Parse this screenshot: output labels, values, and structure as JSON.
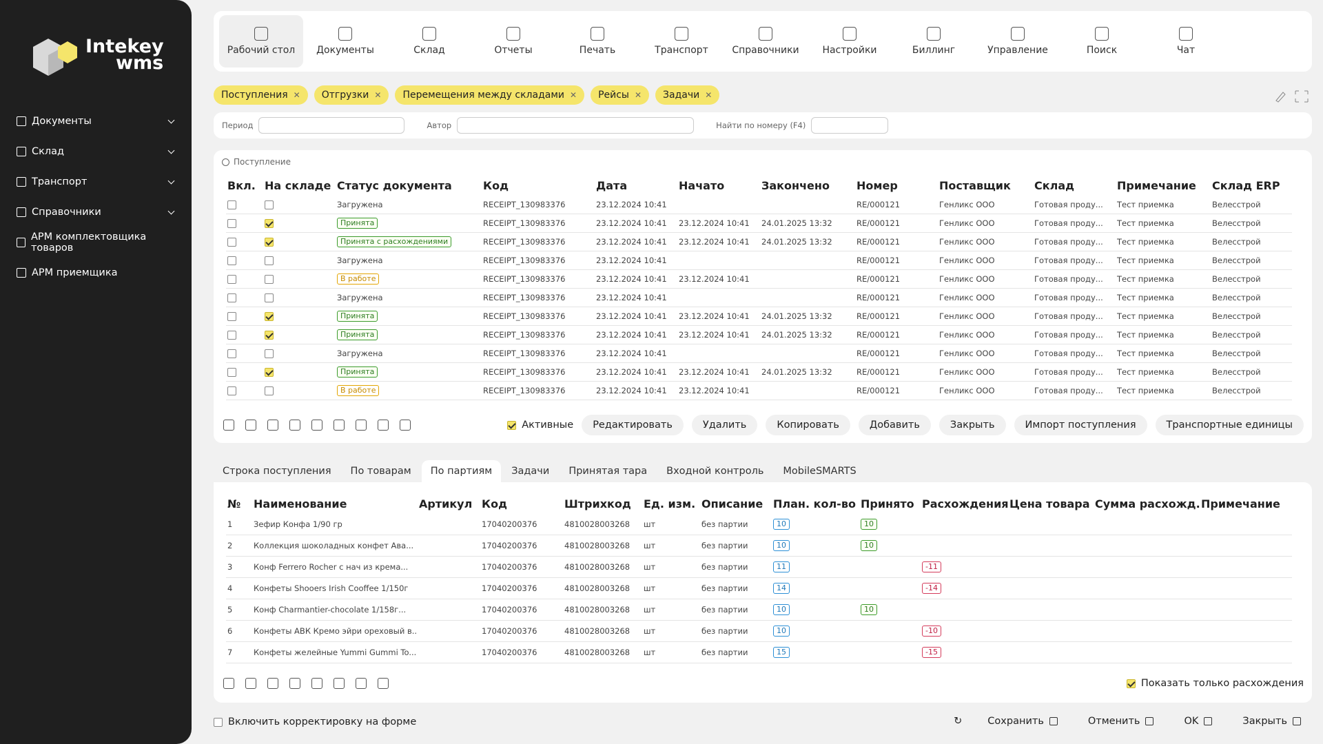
{
  "logo": {
    "name": "Intekey",
    "product": "wms"
  },
  "sidebar": [
    {
      "label": "Документы",
      "expandable": true
    },
    {
      "label": "Склад",
      "expandable": true
    },
    {
      "label": "Транспорт",
      "expandable": true
    },
    {
      "label": "Справочники",
      "expandable": true
    },
    {
      "label": "АРМ комплектовщика товаров",
      "expandable": false
    },
    {
      "label": "АРМ приемщика",
      "expandable": false
    }
  ],
  "top_nav": [
    {
      "label": "Рабочий стол",
      "active": true
    },
    {
      "label": "Документы",
      "active": false
    },
    {
      "label": "Склад",
      "active": false
    },
    {
      "label": "Отчеты",
      "active": false
    },
    {
      "label": "Печать",
      "active": false
    },
    {
      "label": "Транспорт",
      "active": false
    },
    {
      "label": "Справочники",
      "active": false
    },
    {
      "label": "Настройки",
      "active": false
    },
    {
      "label": "Биллинг",
      "active": false
    },
    {
      "label": "Управление",
      "active": false
    },
    {
      "label": "Поиск",
      "active": false
    },
    {
      "label": "Чат",
      "active": false
    }
  ],
  "filter_chips": [
    "Поступления",
    "Отгрузки",
    "Перемещения между складами",
    "Рейсы",
    "Задачи"
  ],
  "filters": [
    "Период",
    "Автор",
    "Найти по номеру (F4)"
  ],
  "receipts": {
    "section": "Поступление",
    "columns": [
      "Вкл.",
      "На складе",
      "Статус документа",
      "Код",
      "Дата",
      "Начато",
      "Закончено",
      "Номер",
      "Поставщик",
      "Склад",
      "Примечание",
      "Склад ERP"
    ],
    "rows": [
      [
        false,
        false,
        "Загружена",
        "RECEIPT_130983376",
        "23.12.2024 10:41",
        null,
        null,
        "RE/000121",
        "Генликс ООО",
        "Готовая проду...",
        "Тест приемка",
        "Велесстрой"
      ],
      [
        false,
        true,
        "Принята",
        "RECEIPT_130983376",
        "23.12.2024 10:41",
        "23.12.2024 10:41",
        "24.01.2025 13:32",
        "RE/000121",
        "Генликс ООО",
        "Готовая проду...",
        "Тест приемка",
        "Велесстрой"
      ],
      [
        false,
        true,
        "Принята с расхождениями",
        "RECEIPT_130983376",
        "23.12.2024 10:41",
        "23.12.2024 10:41",
        "24.01.2025 13:32",
        "RE/000121",
        "Генликс ООО",
        "Готовая проду...",
        "Тест приемка",
        "Велесстрой"
      ],
      [
        false,
        false,
        "Загружена",
        "RECEIPT_130983376",
        "23.12.2024 10:41",
        null,
        null,
        "RE/000121",
        "Генликс ООО",
        "Готовая проду...",
        "Тест приемка",
        "Велесстрой"
      ],
      [
        false,
        false,
        "В работе",
        "RECEIPT_130983376",
        "23.12.2024 10:41",
        "23.12.2024 10:41",
        null,
        "RE/000121",
        "Генликс ООО",
        "Готовая проду...",
        "Тест приемка",
        "Велесстрой"
      ],
      [
        false,
        false,
        "Загружена",
        "RECEIPT_130983376",
        "23.12.2024 10:41",
        null,
        null,
        "RE/000121",
        "Генликс ООО",
        "Готовая проду...",
        "Тест приемка",
        "Велесстрой"
      ],
      [
        false,
        true,
        "Принята",
        "RECEIPT_130983376",
        "23.12.2024 10:41",
        "23.12.2024 10:41",
        "24.01.2025 13:32",
        "RE/000121",
        "Генликс ООО",
        "Готовая проду...",
        "Тест приемка",
        "Велесстрой"
      ],
      [
        false,
        true,
        "Принята",
        "RECEIPT_130983376",
        "23.12.2024 10:41",
        "23.12.2024 10:41",
        "24.01.2025 13:32",
        "RE/000121",
        "Генликс ООО",
        "Готовая проду...",
        "Тест приемка",
        "Велесстрой"
      ],
      [
        false,
        false,
        "Загружена",
        "RECEIPT_130983376",
        "23.12.2024 10:41",
        null,
        null,
        "RE/000121",
        "Генликс ООО",
        "Готовая проду...",
        "Тест приемка",
        "Велесстрой"
      ],
      [
        false,
        true,
        "Принята",
        "RECEIPT_130983376",
        "23.12.2024 10:41",
        "23.12.2024 10:41",
        "24.01.2025 13:32",
        "RE/000121",
        "Генликс ООО",
        "Готовая проду...",
        "Тест приемка",
        "Велесстрой"
      ],
      [
        false,
        false,
        "В работе",
        "RECEIPT_130983376",
        "23.12.2024 10:41",
        "23.12.2024 10:41",
        null,
        "RE/000121",
        "Генликс ООО",
        "Готовая проду...",
        "Тест приемка",
        "Велесстрой"
      ]
    ]
  },
  "receipts_toolbar": {
    "active_filter": {
      "label": "Активные",
      "checked": true
    },
    "buttons": [
      "Редактировать",
      "Удалить",
      "Копировать",
      "Добавить",
      "Закрыть",
      "Импорт поступления",
      "Транспортные единицы"
    ]
  },
  "tabs": [
    {
      "label": "Строка поступления",
      "active": false
    },
    {
      "label": "По товарам",
      "active": false
    },
    {
      "label": "По партиям",
      "active": true
    },
    {
      "label": "Задачи",
      "active": false
    },
    {
      "label": "Принятая тара",
      "active": false
    },
    {
      "label": "Входной контроль",
      "active": false
    },
    {
      "label": "MobileSMARTS",
      "active": false
    }
  ],
  "lines": {
    "columns": [
      "№",
      "Наименование",
      "Артикул",
      "Код",
      "Штрихкод",
      "Ед. изм.",
      "Описание",
      "План. кол-во",
      "Принято",
      "Расхождения",
      "Цена товара",
      "Сумма расхожд.",
      "Примечание"
    ],
    "rows": [
      [
        1,
        "Зефир Конфа 1/90 гр",
        null,
        "17040200376",
        "4810028003268",
        "шт",
        "без партии",
        10,
        10,
        null,
        null,
        null,
        null
      ],
      [
        2,
        "Коллекция шоколадных конфет Ава...",
        null,
        "17040200376",
        "4810028003268",
        "шт",
        "без партии",
        10,
        10,
        null,
        null,
        null,
        null
      ],
      [
        3,
        "Конф Ferrero Rocher с нач из крема...",
        null,
        "17040200376",
        "4810028003268",
        "шт",
        "без партии",
        11,
        null,
        -11,
        null,
        null,
        null
      ],
      [
        4,
        "Конфеты Shooers Irish Cooffee 1/150г",
        null,
        "17040200376",
        "4810028003268",
        "шт",
        "без партии",
        14,
        null,
        -14,
        null,
        null,
        null
      ],
      [
        5,
        "Конф Charmantier-chocolate 1/158г...",
        null,
        "17040200376",
        "4810028003268",
        "шт",
        "без партии",
        10,
        10,
        null,
        null,
        null,
        null
      ],
      [
        6,
        "Конфеты АВК Кремо эйри ореховый в...",
        null,
        "17040200376",
        "4810028003268",
        "шт",
        "без партии",
        10,
        null,
        -10,
        null,
        null,
        null
      ],
      [
        7,
        "Конфеты желейные Yummi Gummi To...",
        null,
        "17040200376",
        "4810028003268",
        "шт",
        "без партии",
        15,
        null,
        -15,
        null,
        null,
        null
      ]
    ],
    "show_only_diff": {
      "label": "Показать только расхождения",
      "checked": true
    }
  },
  "footer": {
    "correction": {
      "label": "Включить корректировку на форме",
      "checked": false
    },
    "buttons": [
      "Сохранить",
      "Отменить",
      "OK",
      "Закрыть"
    ]
  }
}
